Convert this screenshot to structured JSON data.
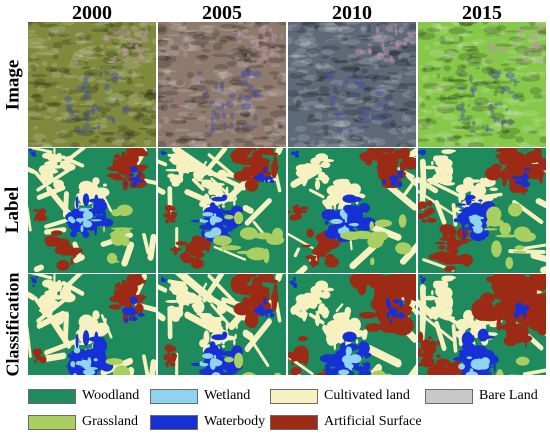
{
  "years": [
    "2000",
    "2005",
    "2010",
    "2015"
  ],
  "rows": [
    "Image",
    "Label",
    "Classification"
  ],
  "legend": [
    {
      "label": "Woodland",
      "color": "#1f8a5b"
    },
    {
      "label": "Wetland",
      "color": "#8fd3f0"
    },
    {
      "label": "Cultivated land",
      "color": "#f7f0c0"
    },
    {
      "label": "Bare Land",
      "color": "#c8c8c8"
    },
    {
      "label": "Grassland",
      "color": "#a9cf62"
    },
    {
      "label": "Waterbody",
      "color": "#1531d6"
    },
    {
      "label": "Artificial Surface",
      "color": "#9c2a14"
    }
  ],
  "image_tints": [
    "#7f8a3c",
    "#8f7a6e",
    "#5f6a78",
    "#86c84a"
  ]
}
